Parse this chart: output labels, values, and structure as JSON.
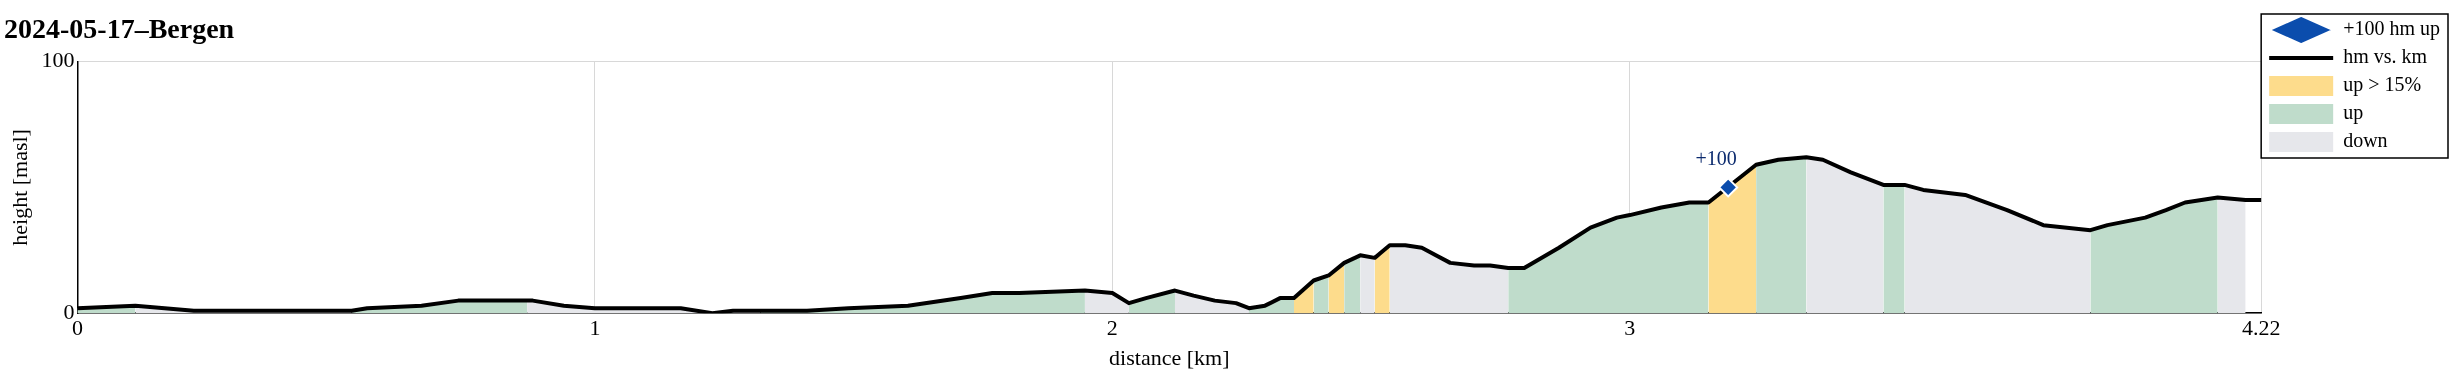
{
  "chart_data": {
    "type": "area",
    "title": "2024-05-17–Bergen",
    "xlabel": "distance [km]",
    "ylabel": "height [masl]",
    "xlim": [
      0,
      4.22
    ],
    "xticks": [
      0,
      1,
      2,
      3,
      4.22
    ],
    "ylim": [
      0,
      100
    ],
    "yticks": [
      0,
      100
    ],
    "grid": true,
    "legend": "top right",
    "annotations": [
      {
        "text": "+100",
        "x": 3.19,
        "y": 50
      }
    ],
    "series": [
      {
        "name": "+100 hm up",
        "type": "scatter",
        "marker": "diamond",
        "color": "#0b4dad",
        "x": [
          3.19
        ],
        "values": [
          50
        ]
      },
      {
        "name": "hm vs. km",
        "type": "line",
        "marker": "none",
        "line_style": "solid",
        "color": "#000000",
        "x": [
          0,
          0.112,
          0.225,
          0.3,
          0.53,
          0.56,
          0.665,
          0.736,
          0.869,
          0.88,
          0.94,
          1.0,
          1.166,
          1.227,
          1.267,
          1.32,
          1.41,
          1.49,
          1.605,
          1.707,
          1.768,
          1.82,
          1.947,
          2.0,
          2.032,
          2.065,
          2.121,
          2.157,
          2.198,
          2.239,
          2.264,
          2.295,
          2.324,
          2.351,
          2.389,
          2.418,
          2.448,
          2.479,
          2.507,
          2.536,
          2.566,
          2.598,
          2.653,
          2.699,
          2.73,
          2.765,
          2.796,
          2.863,
          2.924,
          2.975,
          3.0,
          3.061,
          3.115,
          3.152,
          3.244,
          3.287,
          3.341,
          3.373,
          3.427,
          3.49,
          3.531,
          3.567,
          3.648,
          3.729,
          3.799,
          3.89,
          3.923,
          3.996,
          4.036,
          4.073,
          4.136,
          4.19,
          4.22
        ],
        "values": [
          2,
          3,
          1,
          1,
          1,
          2,
          3,
          5,
          5,
          5,
          3,
          2,
          2,
          0,
          1,
          1,
          1,
          2,
          3,
          6,
          8,
          8,
          9,
          8,
          4,
          6,
          9,
          7,
          5,
          4,
          2,
          3,
          6,
          6,
          13,
          15,
          20,
          23,
          22,
          27,
          27,
          26,
          20,
          19,
          19,
          18,
          18,
          26,
          34,
          38,
          39,
          42,
          44,
          44,
          59,
          61,
          62,
          61,
          56,
          51,
          51,
          49,
          47,
          41,
          35,
          33,
          35,
          38,
          41,
          44,
          46,
          45,
          45
        ]
      },
      {
        "name": "up > 15%",
        "color": "#fddc8c",
        "x": [
          2.351,
          2.389
        ],
        "values": [
          6,
          13
        ]
      },
      {
        "color": "#fddc8c",
        "x": [
          2.418,
          2.448
        ],
        "values": [
          15,
          20
        ]
      },
      {
        "color": "#fddc8c",
        "x": [
          2.507,
          2.536
        ],
        "values": [
          22,
          27
        ]
      },
      {
        "color": "#fddc8c",
        "x": [
          3.152,
          3.244
        ],
        "values": [
          44,
          59
        ]
      },
      {
        "name": "up",
        "color": "#bfdccb",
        "x": [
          0,
          0.112
        ],
        "values": [
          2,
          3
        ]
      },
      {
        "color": "#bfdccb",
        "x": [
          0.53,
          0.56,
          0.665,
          0.736,
          0.869
        ],
        "values": [
          1,
          2,
          3,
          5,
          5
        ]
      },
      {
        "color": "#bfdccb",
        "x": [
          1.227,
          1.267
        ],
        "values": [
          0,
          1
        ]
      },
      {
        "color": "#bfdccb",
        "x": [
          1.32,
          1.41,
          1.49,
          1.605,
          1.707,
          1.768,
          1.82,
          1.947
        ],
        "values": [
          1,
          1,
          2,
          3,
          6,
          8,
          8,
          9
        ]
      },
      {
        "color": "#bfdccb",
        "x": [
          2.032,
          2.065,
          2.121
        ],
        "values": [
          4,
          6,
          9
        ]
      },
      {
        "color": "#bfdccb",
        "x": [
          2.264,
          2.295,
          2.324,
          2.351
        ],
        "values": [
          2,
          3,
          6,
          6
        ]
      },
      {
        "color": "#bfdccb",
        "x": [
          2.389,
          2.418
        ],
        "values": [
          13,
          15
        ]
      },
      {
        "color": "#bfdccb",
        "x": [
          2.448,
          2.479
        ],
        "values": [
          20,
          23
        ]
      },
      {
        "color": "#bfdccb",
        "x": [
          2.765,
          2.796,
          2.863,
          2.924,
          2.975,
          3.0,
          3.061,
          3.115,
          3.152
        ],
        "values": [
          18,
          18,
          26,
          34,
          38,
          39,
          42,
          44,
          44
        ]
      },
      {
        "color": "#bfdccb",
        "x": [
          3.244,
          3.287,
          3.341
        ],
        "values": [
          59,
          61,
          62
        ]
      },
      {
        "color": "#bfdccb",
        "x": [
          3.49,
          3.531
        ],
        "values": [
          51,
          51
        ]
      },
      {
        "color": "#bfdccb",
        "x": [
          3.89,
          3.923,
          3.996,
          4.036,
          4.073,
          4.136
        ],
        "values": [
          33,
          35,
          38,
          41,
          44,
          46
        ]
      },
      {
        "name": "down",
        "color": "#e6e7eb",
        "x": [
          0.112,
          0.225,
          0.3,
          0.53
        ],
        "values": [
          3,
          1,
          1,
          1
        ]
      },
      {
        "color": "#e6e7eb",
        "x": [
          0.869,
          0.88,
          0.94,
          1.0,
          1.166,
          1.227
        ],
        "values": [
          5,
          5,
          3,
          2,
          2,
          0
        ]
      },
      {
        "color": "#e6e7eb",
        "x": [
          1.267,
          1.32
        ],
        "values": [
          1,
          1
        ]
      },
      {
        "color": "#e6e7eb",
        "x": [
          1.947,
          2.0,
          2.032
        ],
        "values": [
          9,
          8,
          4
        ]
      },
      {
        "color": "#e6e7eb",
        "x": [
          2.121,
          2.157,
          2.198,
          2.239,
          2.264
        ],
        "values": [
          9,
          7,
          5,
          4,
          2
        ]
      },
      {
        "color": "#e6e7eb",
        "x": [
          2.479,
          2.507
        ],
        "values": [
          23,
          22
        ]
      },
      {
        "color": "#e6e7eb",
        "x": [
          2.536,
          2.566,
          2.598,
          2.653,
          2.699,
          2.73,
          2.765
        ],
        "values": [
          27,
          27,
          26,
          20,
          19,
          19,
          18
        ]
      },
      {
        "color": "#e6e7eb",
        "x": [
          3.341,
          3.373,
          3.427,
          3.49
        ],
        "values": [
          62,
          61,
          56,
          51
        ]
      },
      {
        "color": "#e6e7eb",
        "x": [
          3.531,
          3.567,
          3.648,
          3.729,
          3.799,
          3.89
        ],
        "values": [
          51,
          49,
          47,
          41,
          35,
          33
        ]
      },
      {
        "color": "#e6e7eb",
        "x": [
          4.136,
          4.19
        ],
        "values": [
          46,
          45
        ]
      }
    ]
  }
}
